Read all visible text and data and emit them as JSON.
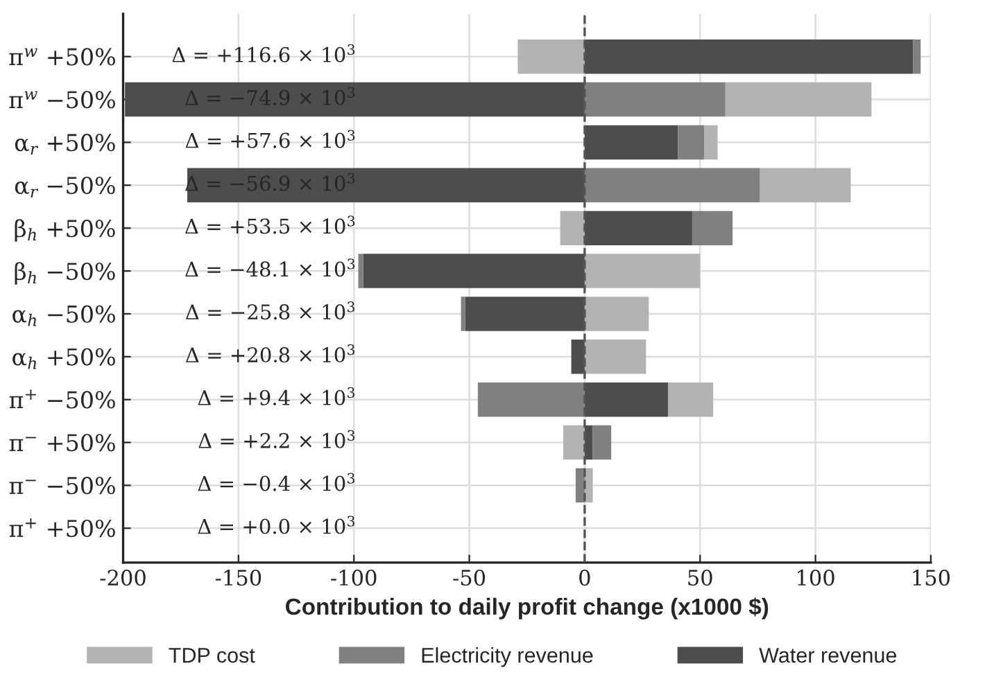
{
  "chart_data": {
    "type": "bar",
    "orientation": "horizontal",
    "stacked": true,
    "xlabel": "Contribution to daily profit change (x1000 $)",
    "categories": [
      "π$^{w}$ +50%",
      "π$^{w}$ −50%",
      "α$_{r}$ +50%",
      "α$_{r}$ −50%",
      "β$_{h}$ +50%",
      "β$_{h}$ −50%",
      "α$_{h}$ −50%",
      "α$_{h}$ +50%",
      "π$^{+}$ −50%",
      "π$^{−}$ +50%",
      "π$^{−}$ −50%",
      "π$^{+}$ +50%"
    ],
    "series": [
      {
        "name": "Water revenue",
        "color": "#4d4d4d",
        "values": [
          142.3,
          -199.2,
          40.4,
          -172.2,
          46.6,
          -96,
          -51.7,
          -5.8,
          36.1,
          3.5,
          null,
          0
        ]
      },
      {
        "name": "Electricity revenue",
        "color": "#808080",
        "values": [
          3.3,
          61,
          11.5,
          76,
          17.5,
          -2.1,
          -1.9,
          0,
          -46.3,
          8,
          -3.9,
          0
        ]
      },
      {
        "name": "TDP cost",
        "color": "#b3b3b3",
        "values": [
          -29,
          63.3,
          5.7,
          39.3,
          -10.6,
          50,
          27.8,
          26.6,
          19.6,
          -9.3,
          3.5,
          0
        ]
      }
    ],
    "annotations": [
      "Δ = +116.6 × 10$^{3}$",
      "Δ = −74.9 × 10$^{3}$",
      "Δ = +57.6 × 10$^{3}$",
      "Δ = −56.9 × 10$^{3}$",
      "Δ = +53.5 × 10$^{3}$",
      "Δ = −48.1 × 10$^{3}$",
      "Δ = −25.8 × 10$^{3}$",
      "Δ = +20.8 × 10$^{3}$",
      "Δ = +9.4 × 10$^{3}$",
      "Δ = +2.2 × 10$^{3}$",
      "Δ = −0.4 × 10$^{3}$",
      "Δ = +0.0 × 10$^{3}$"
    ],
    "xlim": [
      -200,
      150
    ],
    "xticks": [
      -200,
      -150,
      -100,
      -50,
      0,
      50,
      100,
      150
    ],
    "ref_lines": [
      {
        "axis": "x",
        "value": 0,
        "color": "#555555",
        "line_style": "dashed"
      }
    ],
    "grid": true,
    "legend": "bottom"
  }
}
